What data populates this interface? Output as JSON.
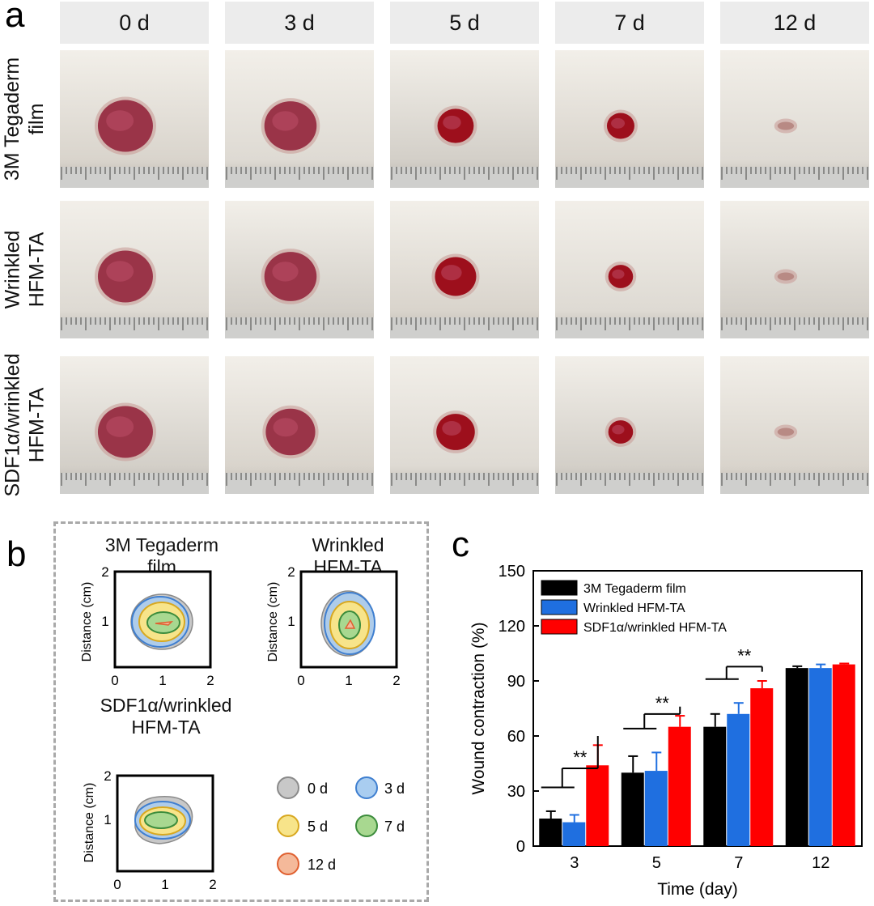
{
  "panel_a": {
    "letter": "a",
    "days": [
      "0 d",
      "3 d",
      "5 d",
      "7 d",
      "12 d"
    ],
    "rows": [
      {
        "label_lines": [
          "3M Tegaderm",
          "film"
        ],
        "wound_scale": [
          1.0,
          0.95,
          0.66,
          0.5,
          0.3
        ]
      },
      {
        "label_lines": [
          "Wrinkled",
          "HFM-TA"
        ],
        "wound_scale": [
          1.0,
          0.95,
          0.75,
          0.45,
          0.3
        ]
      },
      {
        "label_lines": [
          "SDF1α/wrinkled",
          "HFM-TA"
        ],
        "wound_scale": [
          1.0,
          0.9,
          0.7,
          0.45,
          0.3
        ]
      }
    ]
  },
  "panel_b": {
    "letter": "b",
    "plots": [
      {
        "title_lines": [
          "3M Tegaderm",
          "film"
        ],
        "ylabel": "Distance (cm)"
      },
      {
        "title_lines": [
          "Wrinkled",
          "HFM-TA"
        ],
        "ylabel": "Distance (cm)"
      },
      {
        "title_lines": [
          "SDF1α/wrinkled",
          "HFM-TA"
        ],
        "ylabel": "Distance (cm)"
      }
    ],
    "axis_ticks": [
      "0",
      "1",
      "2"
    ],
    "legend": [
      {
        "label": "0 d",
        "fill": "#c8c8c8",
        "stroke": "#8a8a8a"
      },
      {
        "label": "3 d",
        "fill": "#a9cdf0",
        "stroke": "#3f7fd0"
      },
      {
        "label": "5 d",
        "fill": "#f7e48a",
        "stroke": "#d8a820"
      },
      {
        "label": "7 d",
        "fill": "#a8d890",
        "stroke": "#3c8c3c"
      },
      {
        "label": "12 d",
        "fill": "#f4b99a",
        "stroke": "#e06030"
      }
    ]
  },
  "panel_c": {
    "letter": "c",
    "chart_data": {
      "type": "bar",
      "categories": [
        "3",
        "5",
        "7",
        "12"
      ],
      "series": [
        {
          "name": "3M Tegaderm film",
          "color": "#000000",
          "values": [
            15,
            40,
            65,
            97
          ],
          "errors": [
            4,
            9,
            7,
            1
          ]
        },
        {
          "name": "Wrinkled HFM-TA",
          "color": "#1f6fe0",
          "values": [
            13,
            41,
            72,
            97
          ],
          "errors": [
            4,
            10,
            6,
            2
          ]
        },
        {
          "name": "SDF1α/wrinkled HFM-TA",
          "color": "#ff0000",
          "values": [
            44,
            65,
            86,
            99
          ],
          "errors": [
            11,
            6,
            4,
            0.5
          ]
        }
      ],
      "xlabel": "Time (day)",
      "ylabel": "Wound contraction (%)",
      "ylim": [
        0,
        150
      ],
      "yticks": [
        "0",
        "30",
        "60",
        "90",
        "120",
        "150"
      ],
      "significance": [
        {
          "category": "3",
          "label": "**"
        },
        {
          "category": "5",
          "label": "**"
        },
        {
          "category": "7",
          "label": "**"
        }
      ],
      "legend_position": "top-left"
    }
  }
}
